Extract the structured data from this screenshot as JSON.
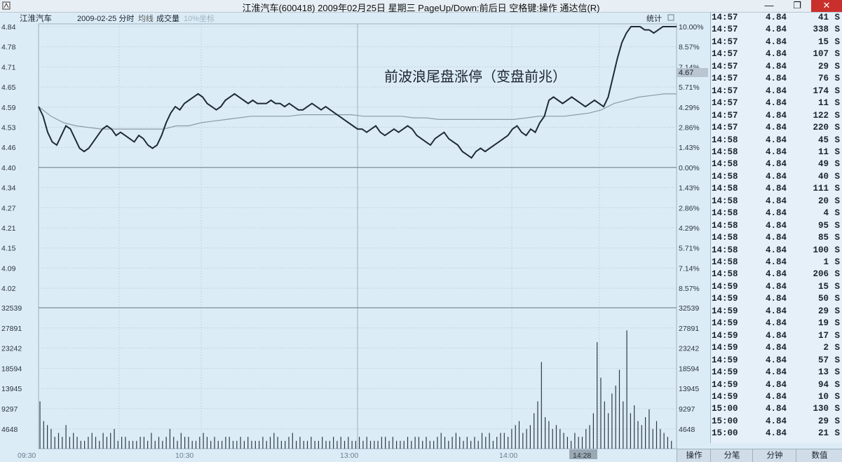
{
  "window": {
    "title": "江淮汽车(600418) 2009年02月25日 星期三 PageUp/Down:前后日 空格键:操作 通达信(R)",
    "min_glyph": "—",
    "max_glyph": "❐",
    "close_glyph": "✕"
  },
  "chart_header": {
    "stock_name": "江淮汽车",
    "date_mode": "2009-02-25 分时",
    "avg_label": "均线",
    "vol_label": "成交量",
    "coord_label": "10%坐标",
    "stats_label": "统计",
    "current_price_tag": "4.67"
  },
  "annotation": "前波浪尾盘涨停（变盘前兆）",
  "chart_data": {
    "type": "line",
    "price_axis": [
      "4.84",
      "4.78",
      "4.71",
      "4.65",
      "4.59",
      "4.53",
      "4.46",
      "4.40",
      "4.34",
      "4.27",
      "4.21",
      "4.15",
      "4.09",
      "4.02"
    ],
    "pct_axis": [
      "10.00%",
      "8.57%",
      "7.14%",
      "5.71%",
      "4.29%",
      "2.86%",
      "1.43%",
      "0.00%",
      "1.43%",
      "2.86%",
      "4.29%",
      "5.71%",
      "7.14%",
      "8.57%"
    ],
    "volume_axis": [
      "32539",
      "27891",
      "23242",
      "18594",
      "13945",
      "9297",
      "4648"
    ],
    "time_labels": [
      "09:30",
      "10:30",
      "13:00",
      "14:00",
      "14:28"
    ],
    "ylim": [
      4.0,
      4.84
    ],
    "prev_close": 4.4,
    "series": [
      {
        "name": "分时",
        "values": [
          4.59,
          4.56,
          4.51,
          4.48,
          4.47,
          4.5,
          4.53,
          4.52,
          4.49,
          4.46,
          4.45,
          4.46,
          4.48,
          4.5,
          4.52,
          4.53,
          4.52,
          4.5,
          4.51,
          4.5,
          4.49,
          4.48,
          4.5,
          4.49,
          4.47,
          4.46,
          4.47,
          4.5,
          4.54,
          4.57,
          4.59,
          4.58,
          4.6,
          4.61,
          4.62,
          4.63,
          4.62,
          4.6,
          4.59,
          4.58,
          4.59,
          4.61,
          4.62,
          4.63,
          4.62,
          4.61,
          4.6,
          4.61,
          4.6,
          4.6,
          4.6,
          4.61,
          4.6,
          4.6,
          4.59,
          4.6,
          4.59,
          4.58,
          4.58,
          4.59,
          4.6,
          4.59,
          4.58,
          4.59,
          4.58,
          4.57,
          4.56,
          4.55,
          4.54,
          4.53,
          4.52,
          4.52,
          4.51,
          4.52,
          4.53,
          4.51,
          4.5,
          4.51,
          4.52,
          4.51,
          4.52,
          4.53,
          4.52,
          4.5,
          4.49,
          4.48,
          4.47,
          4.49,
          4.5,
          4.51,
          4.49,
          4.48,
          4.47,
          4.45,
          4.44,
          4.43,
          4.45,
          4.46,
          4.45,
          4.46,
          4.47,
          4.48,
          4.49,
          4.5,
          4.52,
          4.53,
          4.51,
          4.5,
          4.52,
          4.51,
          4.54,
          4.56,
          4.61,
          4.62,
          4.61,
          4.6,
          4.61,
          4.62,
          4.61,
          4.6,
          4.59,
          4.6,
          4.61,
          4.6,
          4.59,
          4.62,
          4.68,
          4.74,
          4.79,
          4.82,
          4.84,
          4.84,
          4.84,
          4.83,
          4.83,
          4.82,
          4.83,
          4.84,
          4.84,
          4.84,
          4.84
        ]
      },
      {
        "name": "均线",
        "values": [
          4.59,
          4.56,
          4.54,
          4.53,
          4.525,
          4.52,
          4.52,
          4.52,
          4.52,
          4.52,
          4.52,
          4.53,
          4.53,
          4.54,
          4.545,
          4.55,
          4.555,
          4.56,
          4.56,
          4.56,
          4.56,
          4.565,
          4.565,
          4.565,
          4.565,
          4.565,
          4.56,
          4.56,
          4.56,
          4.56,
          4.555,
          4.555,
          4.55,
          4.55,
          4.55,
          4.55,
          4.55,
          4.55,
          4.55,
          4.555,
          4.56,
          4.56,
          4.56,
          4.565,
          4.57,
          4.58,
          4.6,
          4.61,
          4.62,
          4.625,
          4.63,
          4.63
        ]
      }
    ],
    "volume_values": [
      12,
      7,
      6,
      5,
      3,
      4,
      3,
      6,
      3,
      4,
      3,
      2,
      2,
      3,
      4,
      3,
      2,
      4,
      3,
      4,
      5,
      2,
      3,
      3,
      2,
      2,
      2,
      3,
      3,
      2,
      4,
      2,
      3,
      2,
      3,
      5,
      3,
      2,
      4,
      3,
      3,
      2,
      2,
      3,
      4,
      3,
      2,
      3,
      2,
      2,
      3,
      3,
      2,
      2,
      3,
      2,
      3,
      2,
      2,
      2,
      3,
      2,
      3,
      4,
      3,
      2,
      2,
      3,
      4,
      2,
      3,
      2,
      2,
      3,
      2,
      2,
      3,
      2,
      2,
      3,
      2,
      3,
      2,
      3,
      2,
      2,
      3,
      2,
      3,
      2,
      2,
      2,
      3,
      3,
      2,
      3,
      2,
      2,
      2,
      3,
      2,
      3,
      3,
      2,
      3,
      2,
      2,
      3,
      4,
      3,
      2,
      3,
      4,
      3,
      2,
      3,
      2,
      3,
      2,
      4,
      3,
      4,
      2,
      3,
      4,
      4,
      3,
      5,
      6,
      7,
      4,
      5,
      6,
      9,
      12,
      22,
      8,
      7,
      5,
      6,
      5,
      4,
      3,
      2,
      4,
      3,
      3,
      5,
      6,
      9,
      27,
      18,
      12,
      9,
      14,
      16,
      20,
      12,
      30,
      9,
      11,
      7,
      6,
      8,
      10,
      5,
      7,
      5,
      4,
      3,
      2
    ]
  },
  "ticks": [
    [
      "14:57",
      "4.84",
      "41",
      "S"
    ],
    [
      "14:57",
      "4.84",
      "338",
      "S"
    ],
    [
      "14:57",
      "4.84",
      "15",
      "S"
    ],
    [
      "14:57",
      "4.84",
      "107",
      "S"
    ],
    [
      "14:57",
      "4.84",
      "29",
      "S"
    ],
    [
      "14:57",
      "4.84",
      "76",
      "S"
    ],
    [
      "14:57",
      "4.84",
      "174",
      "S"
    ],
    [
      "14:57",
      "4.84",
      "11",
      "S"
    ],
    [
      "14:57",
      "4.84",
      "122",
      "S"
    ],
    [
      "14:57",
      "4.84",
      "220",
      "S"
    ],
    [
      "14:58",
      "4.84",
      "45",
      "S"
    ],
    [
      "14:58",
      "4.84",
      "11",
      "S"
    ],
    [
      "14:58",
      "4.84",
      "49",
      "S"
    ],
    [
      "14:58",
      "4.84",
      "40",
      "S"
    ],
    [
      "14:58",
      "4.84",
      "111",
      "S"
    ],
    [
      "14:58",
      "4.84",
      "20",
      "S"
    ],
    [
      "14:58",
      "4.84",
      "4",
      "S"
    ],
    [
      "14:58",
      "4.84",
      "95",
      "S"
    ],
    [
      "14:58",
      "4.84",
      "85",
      "S"
    ],
    [
      "14:58",
      "4.84",
      "100",
      "S"
    ],
    [
      "14:58",
      "4.84",
      "1",
      "S"
    ],
    [
      "14:58",
      "4.84",
      "206",
      "S"
    ],
    [
      "14:59",
      "4.84",
      "15",
      "S"
    ],
    [
      "14:59",
      "4.84",
      "50",
      "S"
    ],
    [
      "14:59",
      "4.84",
      "29",
      "S"
    ],
    [
      "14:59",
      "4.84",
      "19",
      "S"
    ],
    [
      "14:59",
      "4.84",
      "17",
      "S"
    ],
    [
      "14:59",
      "4.84",
      "2",
      "S"
    ],
    [
      "14:59",
      "4.84",
      "57",
      "S"
    ],
    [
      "14:59",
      "4.84",
      "13",
      "S"
    ],
    [
      "14:59",
      "4.84",
      "94",
      "S"
    ],
    [
      "14:59",
      "4.84",
      "10",
      "S"
    ],
    [
      "15:00",
      "4.84",
      "130",
      "S"
    ],
    [
      "15:00",
      "4.84",
      "29",
      "S"
    ],
    [
      "15:00",
      "4.84",
      "21",
      "S"
    ]
  ],
  "tabs": [
    "操作",
    "分笔",
    "分钟",
    "数值"
  ]
}
